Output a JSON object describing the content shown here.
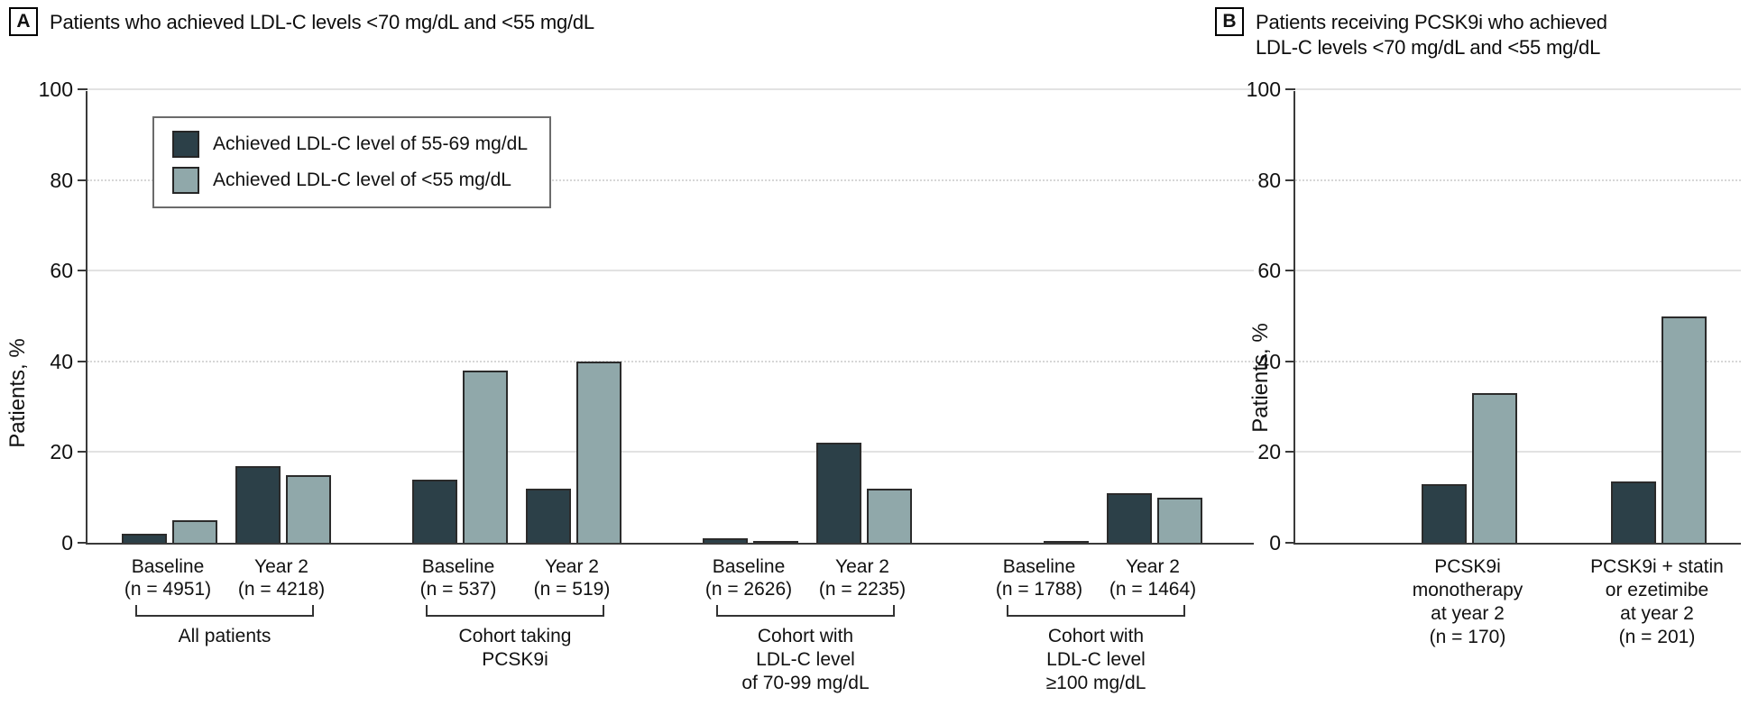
{
  "figure": {
    "background": "#ffffff",
    "colors": {
      "bar_dark": "#2c4048",
      "bar_light": "#90a8aa",
      "bar_outline": "#2b2b2b",
      "axis": "#3a3a3a",
      "grid_solid": "#e2e2e2",
      "grid_dotted": "#d6d6d6",
      "text": "#111111",
      "legend_border": "#6b6b6b"
    }
  },
  "chart_data": [
    {
      "type": "bar",
      "panel_label": "A",
      "title": "Patients who achieved LDL-C levels <70 mg/dL and <55 mg/dL",
      "ylabel": "Patients, %",
      "ylim": [
        0,
        100
      ],
      "yticks": [
        0,
        20,
        40,
        60,
        80,
        100
      ],
      "grid": "horizontal; solid at 20/60/100, dotted at 40/80",
      "legend_position": "upper-left inside plot",
      "legend": [
        {
          "name": "Achieved LDL-C level of 55-69 mg/dL",
          "color": "#2c4048"
        },
        {
          "name": "Achieved LDL-C level of <55 mg/dL",
          "color": "#90a8aa"
        }
      ],
      "series": [
        {
          "name": "Achieved LDL-C level of 55-69 mg/dL",
          "values": [
            2,
            17,
            14,
            12,
            1,
            22,
            0,
            11
          ]
        },
        {
          "name": "Achieved LDL-C level of <55 mg/dL",
          "values": [
            5,
            15,
            38,
            40,
            0.5,
            12,
            0.5,
            10
          ]
        }
      ],
      "categories": [
        "Baseline (n = 4951)",
        "Year 2 (n = 4218)",
        "Baseline (n = 537)",
        "Year 2 (n = 519)",
        "Baseline (n = 2626)",
        "Year 2 (n = 2235)",
        "Baseline (n = 1788)",
        "Year 2 (n = 1464)"
      ],
      "groups": [
        {
          "name_lines": [
            "All patients"
          ],
          "pairs": [
            {
              "label": "Baseline",
              "n": "(n = 4951)",
              "dark": 2,
              "light": 5
            },
            {
              "label": "Year 2",
              "n": "(n = 4218)",
              "dark": 17,
              "light": 15
            }
          ]
        },
        {
          "name_lines": [
            "Cohort taking",
            "PCSK9i"
          ],
          "pairs": [
            {
              "label": "Baseline",
              "n": "(n = 537)",
              "dark": 14,
              "light": 38
            },
            {
              "label": "Year 2",
              "n": "(n = 519)",
              "dark": 12,
              "light": 40
            }
          ]
        },
        {
          "name_lines": [
            "Cohort with",
            "LDL-C level",
            "of 70-99 mg/dL"
          ],
          "pairs": [
            {
              "label": "Baseline",
              "n": "(n = 2626)",
              "dark": 1,
              "light": 0.5
            },
            {
              "label": "Year 2",
              "n": "(n = 2235)",
              "dark": 22,
              "light": 12
            }
          ]
        },
        {
          "name_lines": [
            "Cohort with",
            "LDL-C level",
            "≥100 mg/dL"
          ],
          "pairs": [
            {
              "label": "Baseline",
              "n": "(n = 1788)",
              "dark": 0,
              "light": 0.5
            },
            {
              "label": "Year 2",
              "n": "(n = 1464)",
              "dark": 11,
              "light": 10
            }
          ]
        }
      ]
    },
    {
      "type": "bar",
      "panel_label": "B",
      "title_lines": [
        "Patients receiving PCSK9i who achieved",
        "LDL-C levels <70 mg/dL and <55 mg/dL"
      ],
      "ylabel": "Patients, %",
      "ylim": [
        0,
        100
      ],
      "yticks": [
        0,
        20,
        40,
        60,
        80,
        100
      ],
      "grid": "horizontal; solid at 20/60/100, dotted at 40/80",
      "series": [
        {
          "name": "Achieved LDL-C level of 55-69 mg/dL",
          "values": [
            13,
            13.5
          ]
        },
        {
          "name": "Achieved LDL-C level of <55 mg/dL",
          "values": [
            33,
            50
          ]
        }
      ],
      "categories": [
        "PCSK9i monotherapy at year 2 (n = 170)",
        "PCSK9i + statin or ezetimibe at year 2 (n = 201)"
      ],
      "groups": [
        {
          "label_lines": [
            "PCSK9i",
            "monotherapy",
            "at year 2",
            "(n = 170)"
          ],
          "dark": 13,
          "light": 33
        },
        {
          "label_lines": [
            "PCSK9i + statin",
            "or ezetimibe",
            "at year 2",
            "(n = 201)"
          ],
          "dark": 13.5,
          "light": 50
        }
      ]
    }
  ]
}
